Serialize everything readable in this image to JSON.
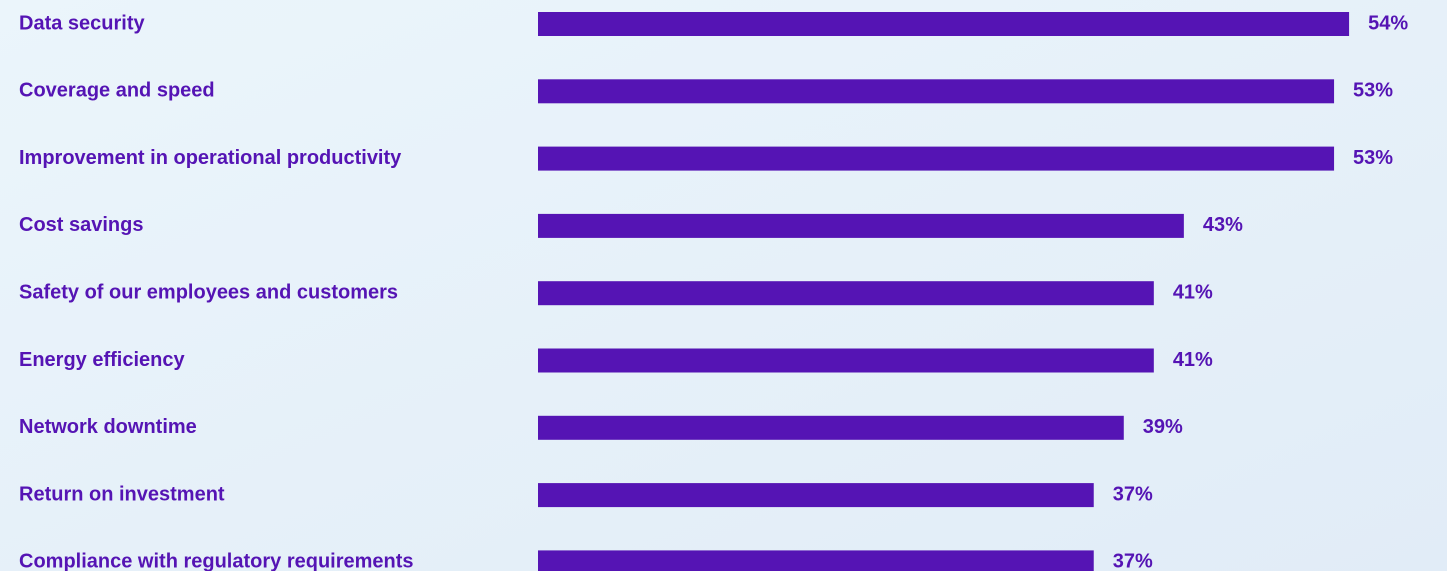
{
  "chart_data": {
    "type": "bar",
    "orientation": "horizontal",
    "categories": [
      "Data security",
      "Coverage and speed",
      "Improvement in operational productivity",
      "Cost savings",
      "Safety of our employees and customers",
      "Energy efficiency",
      "Network downtime",
      "Return on investment",
      "Compliance with regulatory requirements"
    ],
    "values": [
      54,
      53,
      53,
      43,
      41,
      41,
      39,
      37,
      37
    ],
    "value_labels": [
      "54%",
      "53%",
      "53%",
      "43%",
      "41%",
      "41%",
      "39%",
      "37%",
      "37%"
    ],
    "color": "#5514b4"
  }
}
